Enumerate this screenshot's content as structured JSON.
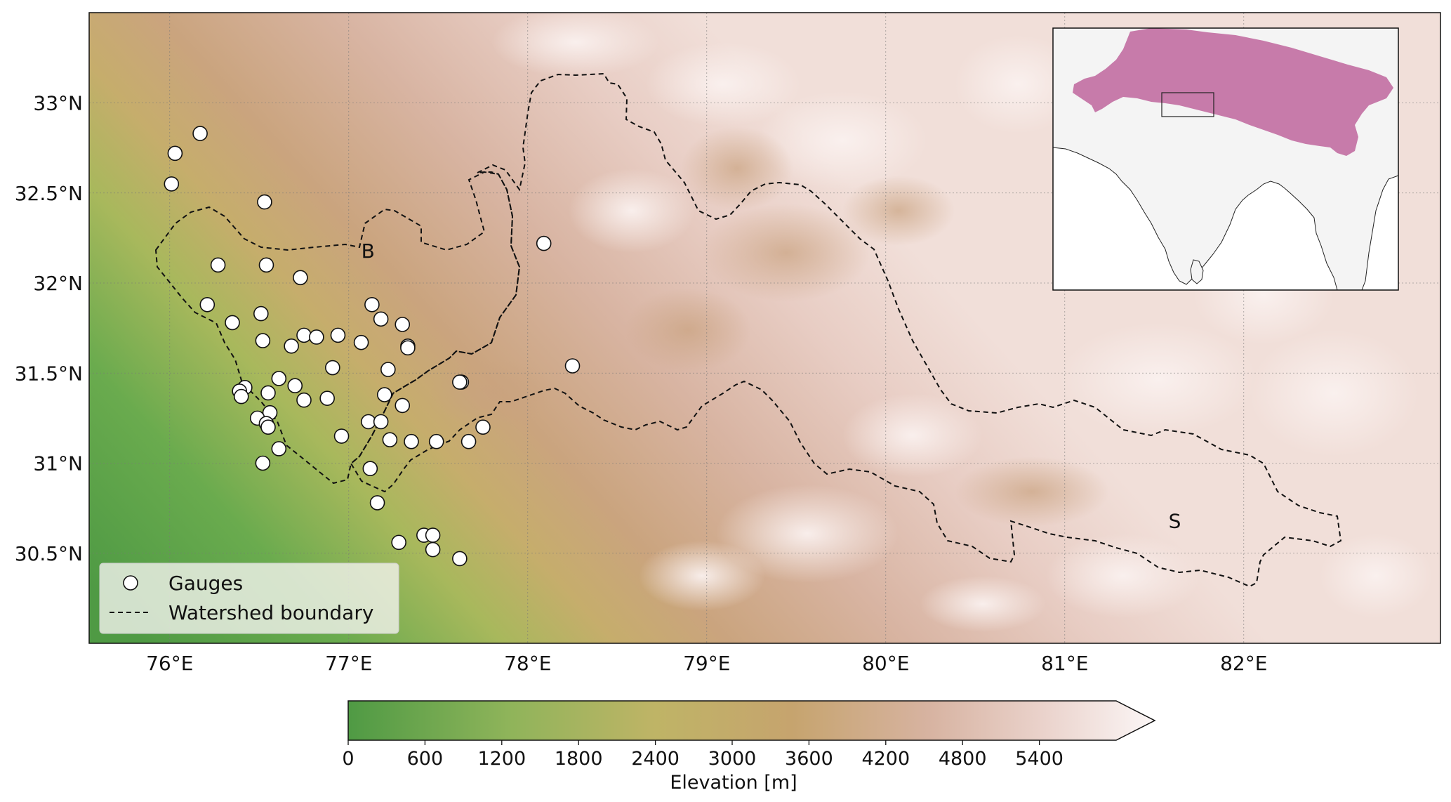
{
  "map": {
    "x_axis": {
      "ticks": [
        {
          "value": 76,
          "label": "76°E"
        },
        {
          "value": 77,
          "label": "77°E"
        },
        {
          "value": 78,
          "label": "78°E"
        },
        {
          "value": 79,
          "label": "79°E"
        },
        {
          "value": 80,
          "label": "80°E"
        },
        {
          "value": 81,
          "label": "81°E"
        },
        {
          "value": 82,
          "label": "82°E"
        }
      ]
    },
    "y_axis": {
      "ticks": [
        {
          "value": 33,
          "label": "33°N"
        },
        {
          "value": 32.5,
          "label": "32.5°N"
        },
        {
          "value": 32,
          "label": "32°N"
        },
        {
          "value": 31.5,
          "label": "31.5°N"
        },
        {
          "value": 31,
          "label": "31°N"
        },
        {
          "value": 30.5,
          "label": "30.5°N"
        }
      ]
    },
    "extent": {
      "lon": [
        75.55,
        83.05
      ],
      "lat": [
        30.0,
        33.5
      ]
    },
    "grid": true,
    "basins": [
      {
        "label": "B",
        "lon": 77.07,
        "lat": 32.18
      },
      {
        "label": "S",
        "lon": 81.58,
        "lat": 30.68
      }
    ],
    "legend": {
      "position": "bottom-left",
      "gauges_label": "Gauges",
      "boundary_label": "Watershed boundary"
    },
    "colors": {
      "low": "#5aa04a",
      "mid": "#c6a46e",
      "high": "#faf3f3",
      "inset_region": "#c77baa",
      "inset_land": "#f4f4f4"
    }
  },
  "gauges": [
    [
      76.17,
      32.83
    ],
    [
      76.03,
      32.72
    ],
    [
      76.01,
      32.55
    ],
    [
      76.53,
      32.45
    ],
    [
      76.27,
      32.1
    ],
    [
      76.54,
      32.1
    ],
    [
      76.73,
      32.03
    ],
    [
      76.21,
      31.88
    ],
    [
      76.51,
      31.83
    ],
    [
      76.35,
      31.78
    ],
    [
      76.75,
      31.71
    ],
    [
      76.82,
      31.7
    ],
    [
      76.94,
      31.71
    ],
    [
      76.52,
      31.68
    ],
    [
      76.68,
      31.65
    ],
    [
      77.07,
      31.67
    ],
    [
      77.13,
      31.88
    ],
    [
      77.18,
      31.8
    ],
    [
      77.3,
      31.77
    ],
    [
      77.33,
      31.65
    ],
    [
      77.33,
      31.64
    ],
    [
      76.91,
      31.53
    ],
    [
      77.22,
      31.52
    ],
    [
      76.61,
      31.47
    ],
    [
      76.7,
      31.43
    ],
    [
      76.42,
      31.42
    ],
    [
      76.39,
      31.4
    ],
    [
      76.55,
      31.39
    ],
    [
      77.2,
      31.38
    ],
    [
      76.4,
      31.37
    ],
    [
      76.75,
      31.35
    ],
    [
      76.88,
      31.36
    ],
    [
      77.3,
      31.32
    ],
    [
      76.56,
      31.28
    ],
    [
      76.49,
      31.25
    ],
    [
      76.54,
      31.22
    ],
    [
      77.11,
      31.23
    ],
    [
      77.18,
      31.23
    ],
    [
      76.55,
      31.2
    ],
    [
      76.96,
      31.15
    ],
    [
      77.23,
      31.13
    ],
    [
      77.35,
      31.12
    ],
    [
      77.49,
      31.12
    ],
    [
      77.67,
      31.12
    ],
    [
      76.61,
      31.08
    ],
    [
      77.75,
      31.2
    ],
    [
      76.52,
      31.0
    ],
    [
      77.12,
      30.97
    ],
    [
      77.63,
      31.45
    ],
    [
      77.62,
      31.45
    ],
    [
      78.09,
      32.22
    ],
    [
      78.25,
      31.54
    ],
    [
      77.16,
      30.78
    ],
    [
      77.28,
      30.56
    ],
    [
      77.42,
      30.6
    ],
    [
      77.47,
      30.6
    ],
    [
      77.47,
      30.52
    ],
    [
      77.62,
      30.47
    ]
  ],
  "inset": {
    "box": {
      "lon": [
        75.55,
        83.05
      ],
      "lat": [
        30.0,
        33.5
      ]
    }
  },
  "colorbar": {
    "title": "Elevation [m]",
    "ticks": [
      {
        "value": 0,
        "label": "0"
      },
      {
        "value": 600,
        "label": "600"
      },
      {
        "value": 1200,
        "label": "1200"
      },
      {
        "value": 1800,
        "label": "1800"
      },
      {
        "value": 2400,
        "label": "2400"
      },
      {
        "value": 3000,
        "label": "3000"
      },
      {
        "value": 3600,
        "label": "3600"
      },
      {
        "value": 4200,
        "label": "4200"
      },
      {
        "value": 4800,
        "label": "4800"
      },
      {
        "value": 5400,
        "label": "5400"
      }
    ],
    "range": [
      0,
      6000
    ],
    "extend": "max"
  }
}
